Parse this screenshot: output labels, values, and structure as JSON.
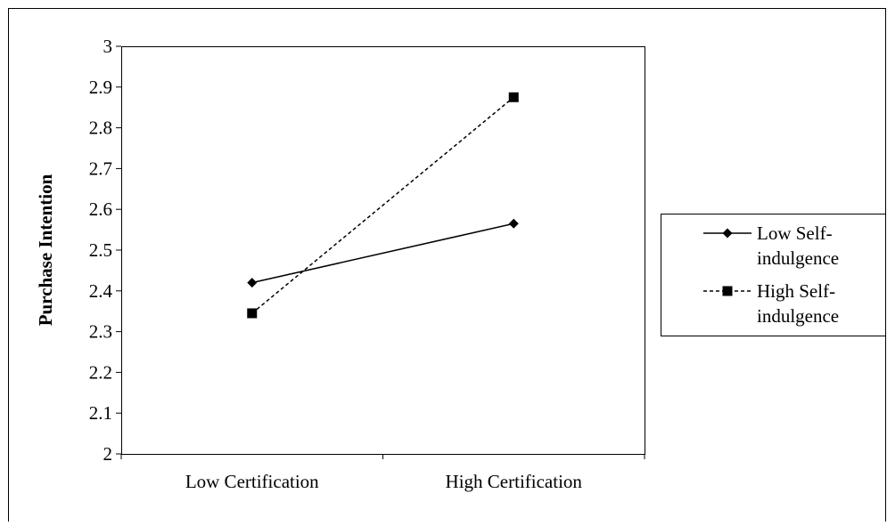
{
  "chart_data": {
    "type": "line",
    "title": "",
    "xlabel": "",
    "ylabel": "Purchase Intention",
    "categories": [
      "Low Certification",
      "High Certification"
    ],
    "ylim": [
      2,
      3
    ],
    "yticks": [
      "2",
      "2.1",
      "2.2",
      "2.3",
      "2.4",
      "2.5",
      "2.6",
      "2.7",
      "2.8",
      "2.9",
      "3"
    ],
    "grid": false,
    "legend_position": "right",
    "series": [
      {
        "name_line1": "Low Self-",
        "name_line2": "indulgence",
        "values": [
          2.42,
          2.565
        ],
        "marker": "diamond",
        "line_style": "solid",
        "color": "#000000"
      },
      {
        "name_line1": "High Self-",
        "name_line2": "indulgence",
        "values": [
          2.345,
          2.875
        ],
        "marker": "square",
        "line_style": "dashed",
        "color": "#000000"
      }
    ]
  }
}
